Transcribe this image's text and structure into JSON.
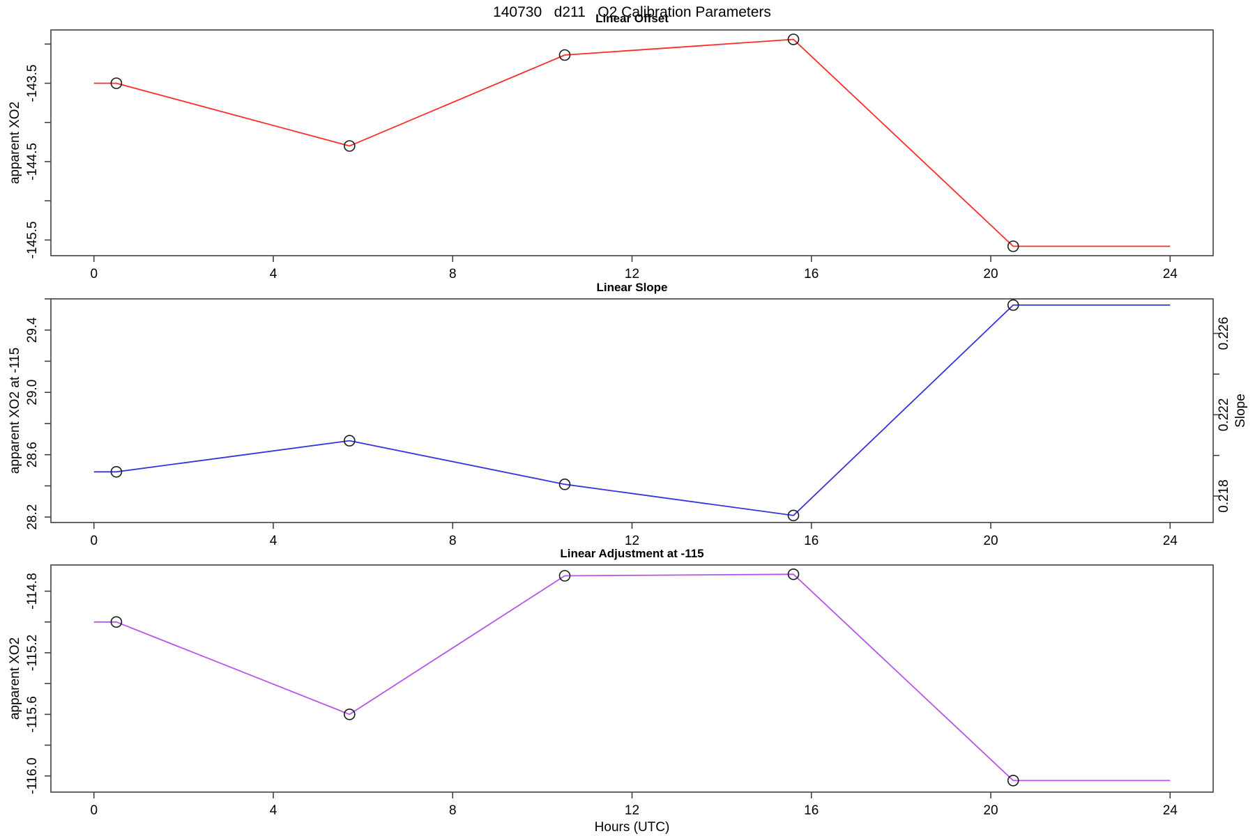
{
  "title": "140730   d211   O2 Calibration Parameters",
  "xlabel": "Hours (UTC)",
  "x_axis": {
    "range": [
      -0.96,
      24.96
    ],
    "ticks": [
      {
        "value": 0,
        "label": "0"
      },
      {
        "value": 4,
        "label": "4"
      },
      {
        "value": 8,
        "label": "8"
      },
      {
        "value": 12,
        "label": "12"
      },
      {
        "value": 16,
        "label": "16"
      },
      {
        "value": 20,
        "label": "20"
      },
      {
        "value": 24,
        "label": "24"
      }
    ]
  },
  "colors": {
    "offset_line": "#FF2A2A",
    "slope_line": "#3333E0",
    "adjustment_line": "#B455E8",
    "marker": "#1A1A1A",
    "frame": "#404040"
  },
  "chart_data": [
    {
      "type": "line",
      "title": "Linear Offset",
      "ylabel": "apparent XO2",
      "color": "#FF2A2A",
      "x": [
        0.5,
        5.7,
        10.5,
        15.6,
        20.5
      ],
      "values": [
        -143.5,
        -144.3,
        -143.14,
        -142.94,
        -145.58
      ],
      "line": {
        "x": [
          0,
          0.5,
          5.7,
          10.5,
          15.6,
          20.5,
          24
        ],
        "y": [
          -143.5,
          -143.5,
          -144.3,
          -143.14,
          -142.94,
          -145.58,
          -145.58
        ]
      },
      "ylim": [
        -145.7,
        -142.82
      ],
      "yticks_minor": [
        -143.0,
        -144.0,
        -145.0
      ],
      "yticks_labeled": [
        {
          "value": -143.5,
          "label": "-143.5"
        },
        {
          "value": -144.5,
          "label": "-144.5"
        },
        {
          "value": -145.5,
          "label": "-145.5"
        }
      ]
    },
    {
      "type": "line",
      "title": "Linear Slope",
      "ylabel": "apparent XO2 at -115",
      "color": "#3333E0",
      "x": [
        0.5,
        5.7,
        10.5,
        15.6,
        20.5
      ],
      "values": [
        28.49,
        28.69,
        28.41,
        28.21,
        29.56
      ],
      "line": {
        "x": [
          0,
          0.5,
          5.7,
          10.5,
          15.6,
          20.5,
          24
        ],
        "y": [
          28.49,
          28.49,
          28.69,
          28.41,
          28.21,
          29.56,
          29.56
        ]
      },
      "ylim": [
        28.165,
        29.6
      ],
      "yticks_minor": [
        28.4,
        28.8,
        29.2,
        29.6
      ],
      "yticks_labeled": [
        {
          "value": 28.2,
          "label": "28.2"
        },
        {
          "value": 28.6,
          "label": "28.6"
        },
        {
          "value": 29.0,
          "label": "29.0"
        },
        {
          "value": 29.4,
          "label": "29.4"
        }
      ],
      "right_axis": {
        "label": "Slope",
        "ylim": [
          0.2167,
          0.2277
        ],
        "ticks_minor": [
          0.22,
          0.224
        ],
        "ticks_labeled": [
          {
            "value": 0.218,
            "label": "0.218"
          },
          {
            "value": 0.222,
            "label": "0.222"
          },
          {
            "value": 0.226,
            "label": "0.226"
          }
        ]
      }
    },
    {
      "type": "line",
      "title": "Linear Adjustment at -115",
      "ylabel": "apparent XO2",
      "color": "#B455E8",
      "x": [
        0.5,
        5.7,
        10.5,
        15.6,
        20.5
      ],
      "values": [
        -115.0,
        -115.6,
        -114.7,
        -114.69,
        -116.03
      ],
      "line": {
        "x": [
          0,
          0.5,
          5.7,
          10.5,
          15.6,
          20.5,
          24
        ],
        "y": [
          -115.0,
          -115.0,
          -115.6,
          -114.7,
          -114.69,
          -116.03,
          -116.03
        ]
      },
      "ylim": [
        -116.105,
        -114.63
      ],
      "yticks_minor": [
        -115.0,
        -115.4,
        -115.8
      ],
      "yticks_labeled": [
        {
          "value": -114.8,
          "label": "-114.8"
        },
        {
          "value": -115.2,
          "label": "-115.2"
        },
        {
          "value": -115.6,
          "label": "-115.6"
        },
        {
          "value": -116.0,
          "label": "-116.0"
        }
      ]
    }
  ]
}
